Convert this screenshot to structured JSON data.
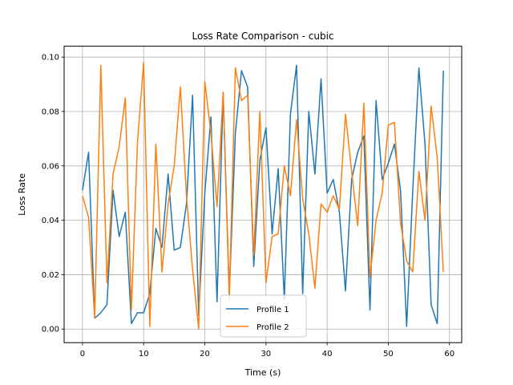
{
  "chart_data": {
    "type": "line",
    "title": "Loss Rate Comparison - cubic",
    "xlabel": "Time (s)",
    "ylabel": "Loss Rate",
    "xlim": [
      -3,
      62
    ],
    "ylim": [
      -0.005,
      0.104
    ],
    "xticks": [
      0,
      10,
      20,
      30,
      40,
      50,
      60
    ],
    "yticks": [
      0.0,
      0.02,
      0.04,
      0.06,
      0.08,
      0.1
    ],
    "ytick_labels": [
      "0.00",
      "0.02",
      "0.04",
      "0.06",
      "0.08",
      "0.10"
    ],
    "grid": true,
    "legend_position": "lower center",
    "x": [
      0,
      1,
      2,
      3,
      4,
      5,
      6,
      7,
      8,
      9,
      10,
      11,
      12,
      13,
      14,
      15,
      16,
      17,
      18,
      19,
      20,
      21,
      22,
      23,
      24,
      25,
      26,
      27,
      28,
      29,
      30,
      31,
      32,
      33,
      34,
      35,
      36,
      37,
      38,
      39,
      40,
      41,
      42,
      43,
      44,
      45,
      46,
      47,
      48,
      49,
      50,
      51,
      52,
      53,
      54,
      55,
      56,
      57,
      58,
      59
    ],
    "series": [
      {
        "name": "Profile 1",
        "color": "#1f77b4",
        "values": [
          0.051,
          0.065,
          0.004,
          0.006,
          0.009,
          0.051,
          0.034,
          0.043,
          0.002,
          0.006,
          0.006,
          0.013,
          0.037,
          0.03,
          0.057,
          0.029,
          0.03,
          0.046,
          0.086,
          0.005,
          0.05,
          0.078,
          0.01,
          0.087,
          0.013,
          0.072,
          0.095,
          0.089,
          0.023,
          0.062,
          0.074,
          0.035,
          0.059,
          0.011,
          0.079,
          0.097,
          0.013,
          0.08,
          0.057,
          0.092,
          0.05,
          0.055,
          0.043,
          0.014,
          0.055,
          0.065,
          0.071,
          0.007,
          0.084,
          0.055,
          0.061,
          0.068,
          0.051,
          0.001,
          0.051,
          0.096,
          0.068,
          0.009,
          0.002,
          0.095
        ]
      },
      {
        "name": "Profile 2",
        "color": "#ff7f0e",
        "values": [
          0.049,
          0.041,
          0.004,
          0.097,
          0.017,
          0.057,
          0.067,
          0.085,
          0.007,
          0.069,
          0.098,
          0.001,
          0.068,
          0.021,
          0.046,
          0.06,
          0.089,
          0.049,
          0.022,
          0.0,
          0.091,
          0.072,
          0.045,
          0.087,
          0.011,
          0.096,
          0.084,
          0.086,
          0.027,
          0.08,
          0.017,
          0.034,
          0.035,
          0.06,
          0.049,
          0.077,
          0.048,
          0.035,
          0.015,
          0.046,
          0.043,
          0.049,
          0.044,
          0.079,
          0.058,
          0.038,
          0.083,
          0.019,
          0.04,
          0.05,
          0.075,
          0.076,
          0.039,
          0.025,
          0.021,
          0.058,
          0.04,
          0.082,
          0.063,
          0.021
        ]
      }
    ]
  }
}
